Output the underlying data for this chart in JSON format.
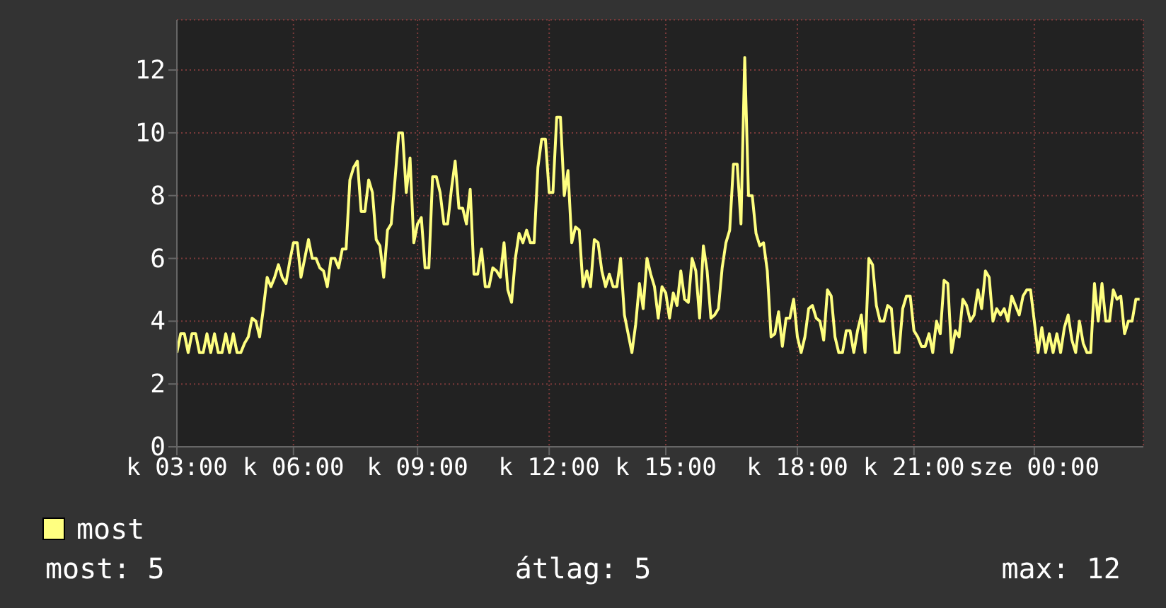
{
  "chart_data": {
    "type": "line",
    "categories": [
      "k 03:00",
      null,
      null,
      null,
      null,
      null,
      null,
      null,
      null,
      null,
      null,
      null,
      null,
      null,
      null,
      null,
      null,
      null,
      null,
      null,
      null,
      null,
      null,
      null,
      null,
      null,
      null,
      null,
      null,
      null,
      null,
      "k 06:00",
      null,
      null,
      null,
      null,
      null,
      null,
      null,
      null,
      null,
      null,
      null,
      null,
      null,
      null,
      null,
      null,
      null,
      null,
      null,
      null,
      null,
      null,
      null,
      null,
      null,
      null,
      null,
      null,
      null,
      null,
      null,
      null,
      "k 09:00",
      null,
      null,
      null,
      null,
      null,
      null,
      null,
      null,
      null,
      null,
      null,
      null,
      null,
      null,
      null,
      null,
      null,
      null,
      null,
      null,
      null,
      null,
      null,
      null,
      null,
      null,
      null,
      null,
      null,
      null,
      null,
      null,
      null,
      null,
      "k 12:00",
      null,
      null,
      null,
      null,
      null,
      null,
      null,
      null,
      null,
      null,
      null,
      null,
      null,
      null,
      null,
      null,
      null,
      null,
      null,
      null,
      null,
      null,
      null,
      null,
      null,
      null,
      null,
      null,
      null,
      null,
      "k 15:00",
      null,
      null,
      null,
      null,
      null,
      null,
      null,
      null,
      null,
      null,
      null,
      null,
      null,
      null,
      null,
      null,
      null,
      null,
      null,
      null,
      null,
      null,
      null,
      null,
      null,
      null,
      null,
      null,
      null,
      null,
      null,
      null,
      null,
      null,
      "k 18:00",
      null,
      null,
      null,
      null,
      null,
      null,
      null,
      null,
      null,
      null,
      null,
      null,
      null,
      null,
      null,
      null,
      null,
      null,
      null,
      null,
      null,
      null,
      null,
      null,
      null,
      null,
      null,
      null,
      null,
      null,
      "k 21:00",
      null,
      null,
      null,
      null,
      null,
      null,
      null,
      null,
      null,
      null,
      null,
      null,
      null,
      null,
      null,
      null,
      null,
      null,
      null,
      null,
      null,
      null,
      null,
      null,
      null,
      null,
      null,
      null,
      null,
      null,
      null,
      "sze 00:00",
      null,
      null,
      null,
      null,
      null,
      null,
      null,
      null,
      null,
      null,
      null,
      null,
      null,
      null,
      null,
      null,
      null,
      null,
      null,
      null,
      null,
      null,
      null,
      null,
      null,
      null,
      null,
      null
    ],
    "series": [
      {
        "name": "most",
        "color": "#ffff80",
        "values": [
          3.0,
          3.6,
          3.6,
          3.0,
          3.6,
          3.6,
          3.0,
          3.0,
          3.6,
          3.0,
          3.6,
          3.0,
          3.0,
          3.6,
          3.0,
          3.6,
          3.0,
          3.0,
          3.3,
          3.5,
          4.1,
          4.0,
          3.5,
          4.4,
          5.4,
          5.1,
          5.4,
          5.8,
          5.4,
          5.2,
          5.9,
          6.5,
          6.5,
          5.4,
          6.0,
          6.6,
          6.0,
          6.0,
          5.7,
          5.6,
          5.1,
          6.0,
          6.0,
          5.7,
          6.3,
          6.3,
          8.5,
          8.9,
          9.1,
          7.5,
          7.5,
          8.5,
          8.1,
          6.6,
          6.4,
          5.4,
          6.9,
          7.1,
          8.5,
          10.0,
          10.0,
          8.1,
          9.2,
          6.5,
          7.1,
          7.3,
          5.7,
          5.7,
          8.6,
          8.6,
          8.1,
          7.1,
          7.1,
          8.2,
          9.1,
          7.6,
          7.6,
          7.1,
          8.2,
          5.5,
          5.5,
          6.3,
          5.1,
          5.1,
          5.7,
          5.6,
          5.4,
          6.5,
          5.0,
          4.6,
          6.0,
          6.8,
          6.5,
          6.9,
          6.5,
          6.5,
          8.9,
          9.8,
          9.8,
          8.1,
          8.1,
          10.5,
          10.5,
          8.0,
          8.8,
          6.5,
          7.0,
          6.9,
          5.1,
          5.6,
          5.1,
          6.6,
          6.5,
          5.6,
          5.1,
          5.5,
          5.1,
          5.1,
          6.0,
          4.2,
          3.6,
          3.0,
          3.9,
          5.2,
          4.4,
          6.0,
          5.5,
          5.1,
          4.1,
          5.1,
          4.9,
          4.1,
          4.9,
          4.5,
          5.6,
          4.7,
          4.6,
          6.0,
          5.6,
          4.1,
          6.4,
          5.6,
          4.1,
          4.2,
          4.4,
          5.7,
          6.5,
          6.9,
          9.0,
          9.0,
          7.1,
          12.4,
          8.0,
          8.0,
          6.8,
          6.4,
          6.5,
          5.6,
          3.5,
          3.6,
          4.3,
          3.2,
          4.1,
          4.1,
          4.7,
          3.5,
          3.0,
          3.5,
          4.4,
          4.5,
          4.1,
          4.0,
          3.4,
          5.0,
          4.8,
          3.5,
          3.0,
          3.0,
          3.7,
          3.7,
          3.0,
          3.7,
          4.2,
          3.0,
          6.0,
          5.8,
          4.5,
          4.0,
          4.0,
          4.5,
          4.4,
          3.0,
          3.0,
          4.4,
          4.8,
          4.8,
          3.7,
          3.5,
          3.2,
          3.2,
          3.6,
          3.0,
          4.0,
          3.6,
          5.3,
          5.2,
          3.0,
          3.7,
          3.5,
          4.7,
          4.5,
          4.0,
          4.2,
          5.0,
          4.4,
          5.6,
          5.4,
          4.0,
          4.4,
          4.2,
          4.4,
          4.0,
          4.8,
          4.5,
          4.2,
          4.8,
          5.0,
          5.0,
          4.0,
          3.0,
          3.8,
          3.0,
          3.6,
          3.0,
          3.6,
          3.0,
          3.8,
          4.2,
          3.4,
          3.0,
          4.0,
          3.3,
          3.0,
          3.0,
          5.2,
          4.0,
          5.2,
          4.0,
          4.0,
          5.0,
          4.7,
          4.8,
          3.6,
          4.0,
          4.0,
          4.7,
          4.7
        ]
      }
    ],
    "ylim": [
      0,
      13.6
    ],
    "yticks": [
      0,
      2,
      4,
      6,
      8,
      10,
      12
    ],
    "grid": true,
    "legend": "bottom",
    "marker": "none",
    "line_style": "solid",
    "annotations": [
      "most: 5",
      "átlag: 5",
      "max: 12"
    ]
  }
}
